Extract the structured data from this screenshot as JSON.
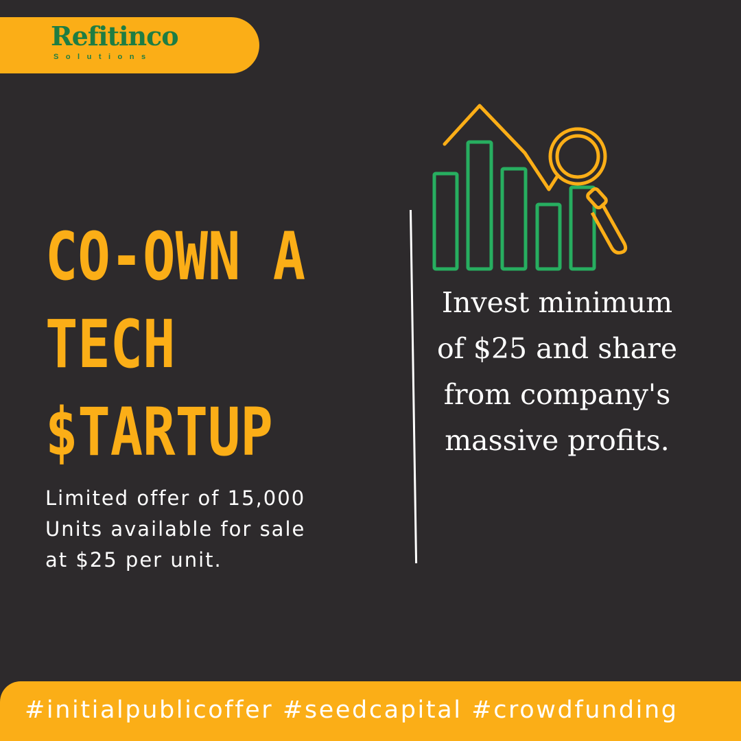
{
  "brand": {
    "name": "Refitinco",
    "tagline": "Solutions"
  },
  "headline": {
    "line1": "CO-OWN A",
    "line2": "TECH",
    "line3": "$TARTUP"
  },
  "offer": {
    "line1": "Limited offer of 15,000",
    "line2": "Units available for sale",
    "line3": "at $25 per unit."
  },
  "invest": {
    "line1": "Invest minimum",
    "line2": "of  $25 and share",
    "line3": "from company's",
    "line4": "massive profits."
  },
  "footer": {
    "hashtags": "#initialpublicoffer #seedcapital #crowdfunding"
  },
  "icons": {
    "chart": "bar-chart-magnifier-icon"
  },
  "colors": {
    "background": "#2d2a2c",
    "accent": "#fbae17",
    "brand_green": "#1e7d43",
    "chart_green": "#27ae60",
    "text": "#ffffff"
  }
}
